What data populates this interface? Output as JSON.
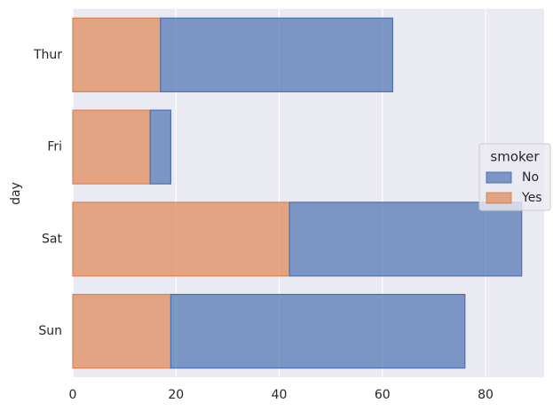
{
  "chart_data": {
    "type": "bar",
    "orientation": "horizontal",
    "stacked": true,
    "y_label": "day",
    "categories": [
      "Thur",
      "Fri",
      "Sat",
      "Sun"
    ],
    "series": [
      {
        "name": "No",
        "color": "#4c72b0",
        "values": [
          45,
          4,
          45,
          57
        ]
      },
      {
        "name": "Yes",
        "color": "#dd8452",
        "values": [
          17,
          15,
          42,
          19
        ]
      }
    ],
    "legend_title": "smoker",
    "legend": "right",
    "xlim": [
      0,
      91.35
    ],
    "xticks": [
      0,
      20,
      40,
      60,
      80
    ],
    "grid": true
  }
}
